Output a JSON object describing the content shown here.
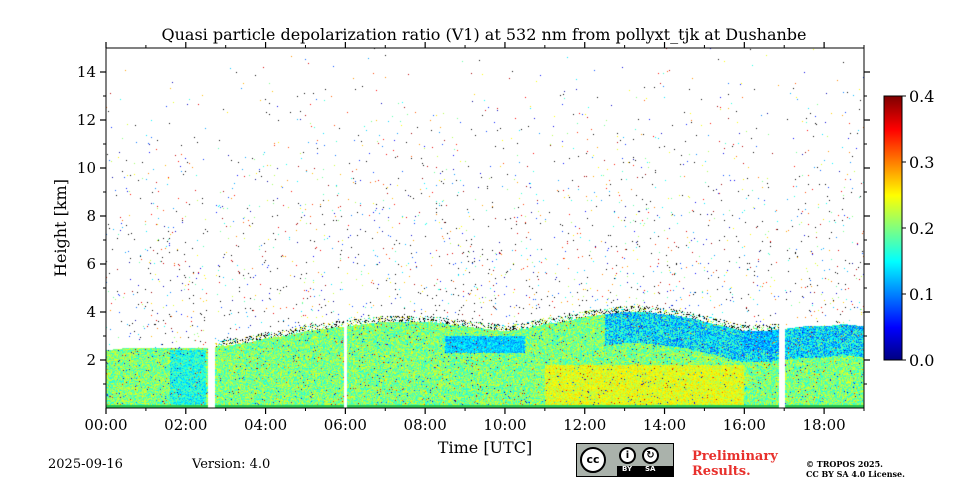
{
  "chart_data": {
    "type": "heatmap",
    "title": "Quasi particle depolarization ratio (V1) at 532 nm from pollyxt_tjk at Dushanbe",
    "xlabel": "Time [UTC]",
    "ylabel": "Height [km]",
    "xlim": [
      0,
      19
    ],
    "ylim": [
      0,
      15
    ],
    "x_ticks": [
      {
        "value": 0,
        "label": "00:00"
      },
      {
        "value": 2,
        "label": "02:00"
      },
      {
        "value": 4,
        "label": "04:00"
      },
      {
        "value": 6,
        "label": "06:00"
      },
      {
        "value": 8,
        "label": "08:00"
      },
      {
        "value": 10,
        "label": "10:00"
      },
      {
        "value": 12,
        "label": "12:00"
      },
      {
        "value": 14,
        "label": "14:00"
      },
      {
        "value": 16,
        "label": "16:00"
      },
      {
        "value": 18,
        "label": "18:00"
      }
    ],
    "y_ticks": [
      {
        "value": 2,
        "label": "2"
      },
      {
        "value": 4,
        "label": "4"
      },
      {
        "value": 6,
        "label": "6"
      },
      {
        "value": 8,
        "label": "8"
      },
      {
        "value": 10,
        "label": "10"
      },
      {
        "value": 12,
        "label": "12"
      },
      {
        "value": 14,
        "label": "14"
      }
    ],
    "colorbar": {
      "min": 0.0,
      "max": 0.4,
      "colormap": "jet",
      "ticks": [
        {
          "value": 0.0,
          "label": "0.0"
        },
        {
          "value": 0.1,
          "label": "0.1"
        },
        {
          "value": 0.2,
          "label": "0.2"
        },
        {
          "value": 0.3,
          "label": "0.3"
        },
        {
          "value": 0.4,
          "label": "0.4"
        }
      ]
    },
    "layer_top_km": [
      [
        0.0,
        2.4
      ],
      [
        0.5,
        2.5
      ],
      [
        1.0,
        2.5
      ],
      [
        1.5,
        2.5
      ],
      [
        2.0,
        2.5
      ],
      [
        2.5,
        2.5
      ],
      [
        3.0,
        2.6
      ],
      [
        3.5,
        2.7
      ],
      [
        4.0,
        2.9
      ],
      [
        4.5,
        3.0
      ],
      [
        5.0,
        3.2
      ],
      [
        5.5,
        3.3
      ],
      [
        6.0,
        3.4
      ],
      [
        6.5,
        3.5
      ],
      [
        7.0,
        3.6
      ],
      [
        7.5,
        3.6
      ],
      [
        8.0,
        3.6
      ],
      [
        8.5,
        3.5
      ],
      [
        9.0,
        3.4
      ],
      [
        9.5,
        3.3
      ],
      [
        10.0,
        3.2
      ],
      [
        10.5,
        3.3
      ],
      [
        11.0,
        3.5
      ],
      [
        11.5,
        3.6
      ],
      [
        12.0,
        3.8
      ],
      [
        12.5,
        3.9
      ],
      [
        13.0,
        4.0
      ],
      [
        13.5,
        4.0
      ],
      [
        14.0,
        3.9
      ],
      [
        14.5,
        3.8
      ],
      [
        15.0,
        3.6
      ],
      [
        15.5,
        3.4
      ],
      [
        16.0,
        3.2
      ],
      [
        16.5,
        3.2
      ],
      [
        17.0,
        3.3
      ],
      [
        17.5,
        3.4
      ],
      [
        18.0,
        3.4
      ],
      [
        18.5,
        3.5
      ],
      [
        19.0,
        3.4
      ]
    ],
    "data_gaps_utc": [
      [
        2.55,
        2.72
      ],
      [
        5.97,
        6.05
      ],
      [
        16.87,
        17.02
      ]
    ]
  },
  "footer": {
    "date": "2025-09-16",
    "version": "Version: 4.0",
    "preliminary_line1": "Preliminary",
    "preliminary_line2": "Results.",
    "copyright_line1": "© TROPOS 2025.",
    "copyright_line2": "CC BY SA 4.0 License.",
    "license_badge_by": "BY",
    "license_badge_sa": "SA",
    "license_badge_cc": "cc"
  }
}
